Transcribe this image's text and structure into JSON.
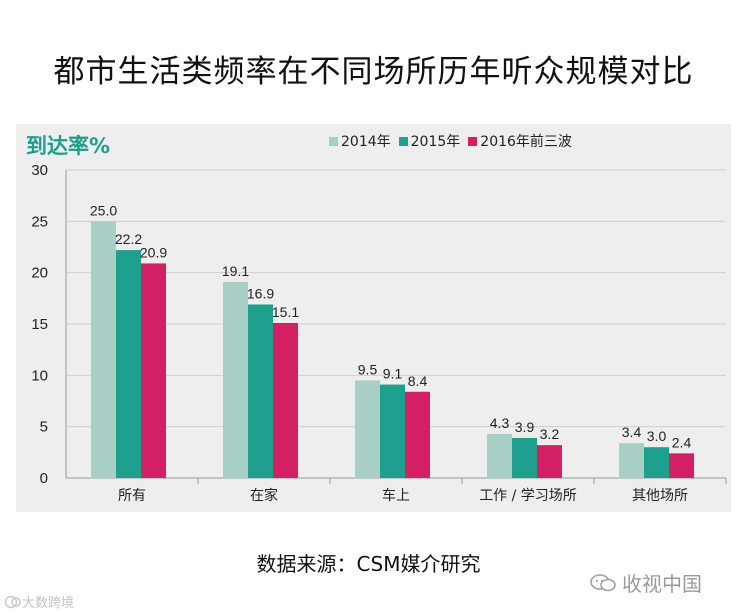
{
  "title": "都市生活类频率在不同场所历年听众规模对比",
  "source_note": "数据来源：CSM媒介研究",
  "watermark": "收视中国",
  "corner_mark": "大数跨境",
  "colors": {
    "s2014": "#a8cfc6",
    "s2015": "#1f9f8e",
    "s2016": "#d31f63",
    "ylabel": "#1e9e8c"
  },
  "chart_data": {
    "type": "bar",
    "title": "都市生活类频率在不同场所历年听众规模对比",
    "ylabel": "到达率%",
    "xlabel": "",
    "ylim": [
      0,
      30
    ],
    "yticks": [
      0,
      5,
      10,
      15,
      20,
      25,
      30
    ],
    "grid": true,
    "legend_position": "top",
    "categories": [
      "所有",
      "在家",
      "车上",
      "工作 / 学习场所",
      "其他场所"
    ],
    "series": [
      {
        "name": "2014年",
        "values": [
          25.0,
          19.1,
          9.5,
          4.3,
          3.4
        ]
      },
      {
        "name": "2015年",
        "values": [
          22.2,
          16.9,
          9.1,
          3.9,
          3.0
        ]
      },
      {
        "name": "2016年前三波",
        "values": [
          20.9,
          15.1,
          8.4,
          3.2,
          2.4
        ]
      }
    ]
  }
}
